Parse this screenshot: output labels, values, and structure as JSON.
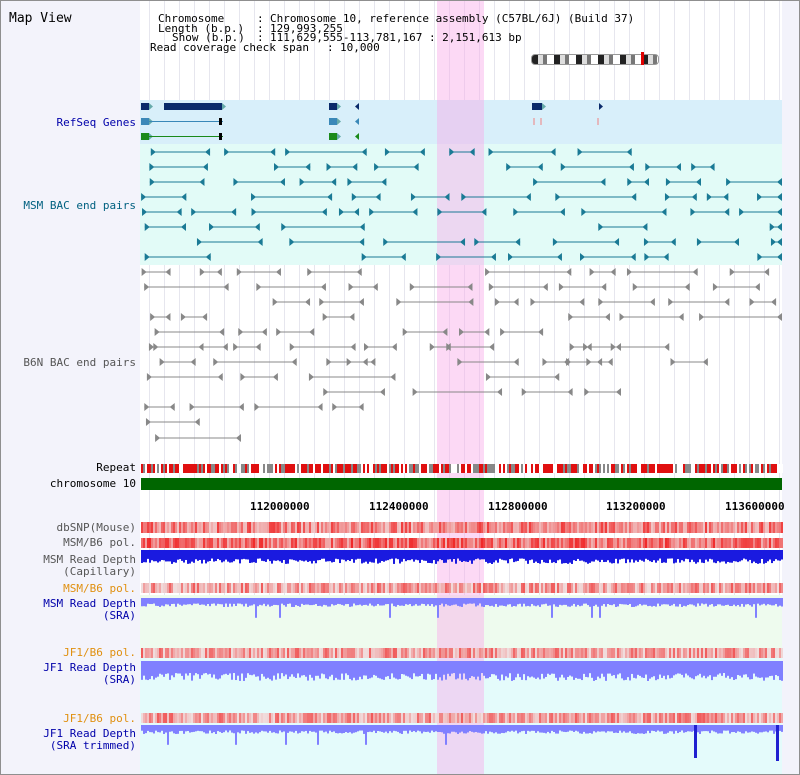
{
  "panel": {
    "title": "Map View"
  },
  "info": {
    "chromosome_label": "Chromosome",
    "chromosome_value": "Chromosome 10, reference assembly (C57BL/6J) (Build 37)",
    "length_label": "Length (b.p.)",
    "length_value": "129,993,255",
    "show_label": "Show (b.p.)",
    "show_value": "111,629,555-113,781,167 : 2,151,613 bp",
    "span_label": "Read coverage check span",
    "span_value": "10,000"
  },
  "tracks": {
    "refseq": "RefSeq Genes",
    "msm_bac": "MSM BAC end pairs",
    "b6n_bac": "B6N BAC end pairs",
    "repeat": "Repeat",
    "chromosome": "chromosome 10",
    "dbsnp": "dbSNP(Mouse)",
    "msm_b6_pol_1": "MSM/B6 pol.",
    "msm_depth_cap_1": "MSM Read Depth",
    "msm_depth_cap_2": "(Capillary)",
    "msm_b6_pol_2": "MSM/B6 pol.",
    "msm_depth_sra_1": "MSM Read Depth",
    "msm_depth_sra_2": "(SRA)",
    "jf1_b6_pol_1": "JF1/B6 pol.",
    "jf1_depth_sra_1": "JF1 Read Depth",
    "jf1_depth_sra_2": "(SRA)",
    "jf1_b6_pol_2": "JF1/B6 pol.",
    "jf1_trim_1": "JF1 Read Depth",
    "jf1_trim_2": "(SRA trimmed)"
  },
  "axis": {
    "ticks": [
      "112000000",
      "112400000",
      "112800000",
      "113200000",
      "113600000"
    ]
  },
  "colors": {
    "highlight": "#f8aae8",
    "refseq_bg": "#d8effa",
    "bac_bg": "#e2fbf7",
    "chrom": "#006600",
    "snp": "#f06060",
    "depth_capillary": "#1a1ae0",
    "depth_sra": "#8080ff"
  }
}
